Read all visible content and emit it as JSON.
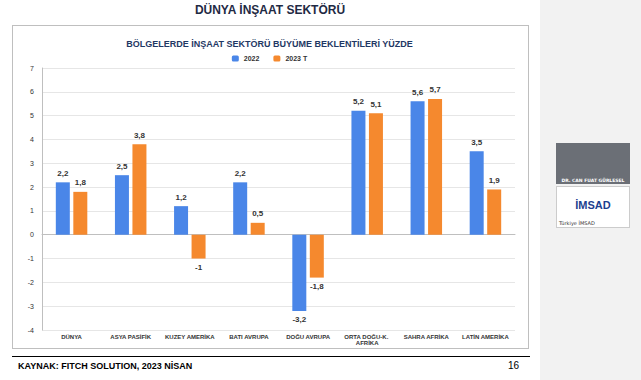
{
  "chart_data": {
    "type": "bar",
    "title": "BÖLGELERDE İNŞAAT SEKTÖRÜ BÜYÜME BEKLENTİLERİ YÜZDE",
    "categories": [
      "DÜNYA",
      "ASYA PASİFİK",
      "KUZEY AMERİKA",
      "BATI AVRUPA",
      "DOĞU AVRUPA",
      "ORTA DOĞU-K. AFRİKA",
      "SAHRA AFRİKA",
      "LATİN AMERİKA"
    ],
    "series": [
      {
        "name": "2022",
        "color": "#4a86e8",
        "values": [
          2.2,
          2.5,
          1.2,
          2.2,
          -3.2,
          5.2,
          5.6,
          3.5
        ],
        "value_labels": [
          "2,2",
          "2,5",
          "1,2",
          "2,2",
          "-3,2",
          "5,2",
          "5,6",
          "3,5"
        ]
      },
      {
        "name": "2023 T",
        "color": "#f5892e",
        "values": [
          1.8,
          3.8,
          -1,
          0.5,
          -1.8,
          5.1,
          5.7,
          1.9
        ],
        "value_labels": [
          "1,8",
          "3,8",
          "-1",
          "0,5",
          "-1,8",
          "5,1",
          "5,7",
          "1,9"
        ]
      }
    ],
    "ylim": [
      -4,
      7
    ],
    "yticks": [
      -4,
      -3,
      -2,
      -1,
      0,
      1,
      2,
      3,
      4,
      5,
      6,
      7
    ],
    "grid": true,
    "legend": "top",
    "data_labels": true
  },
  "slide": {
    "header": "DÜNYA İNŞAAT SEKTÖRÜ",
    "source": "KAYNAK: FITCH SOLUTION, 2023 NİSAN",
    "page": 16
  },
  "speaker": {
    "name": "DR. CAN FUAT GÜRLESEL",
    "logo": "İMSAD",
    "caption": "Türkiye İMSAD"
  }
}
